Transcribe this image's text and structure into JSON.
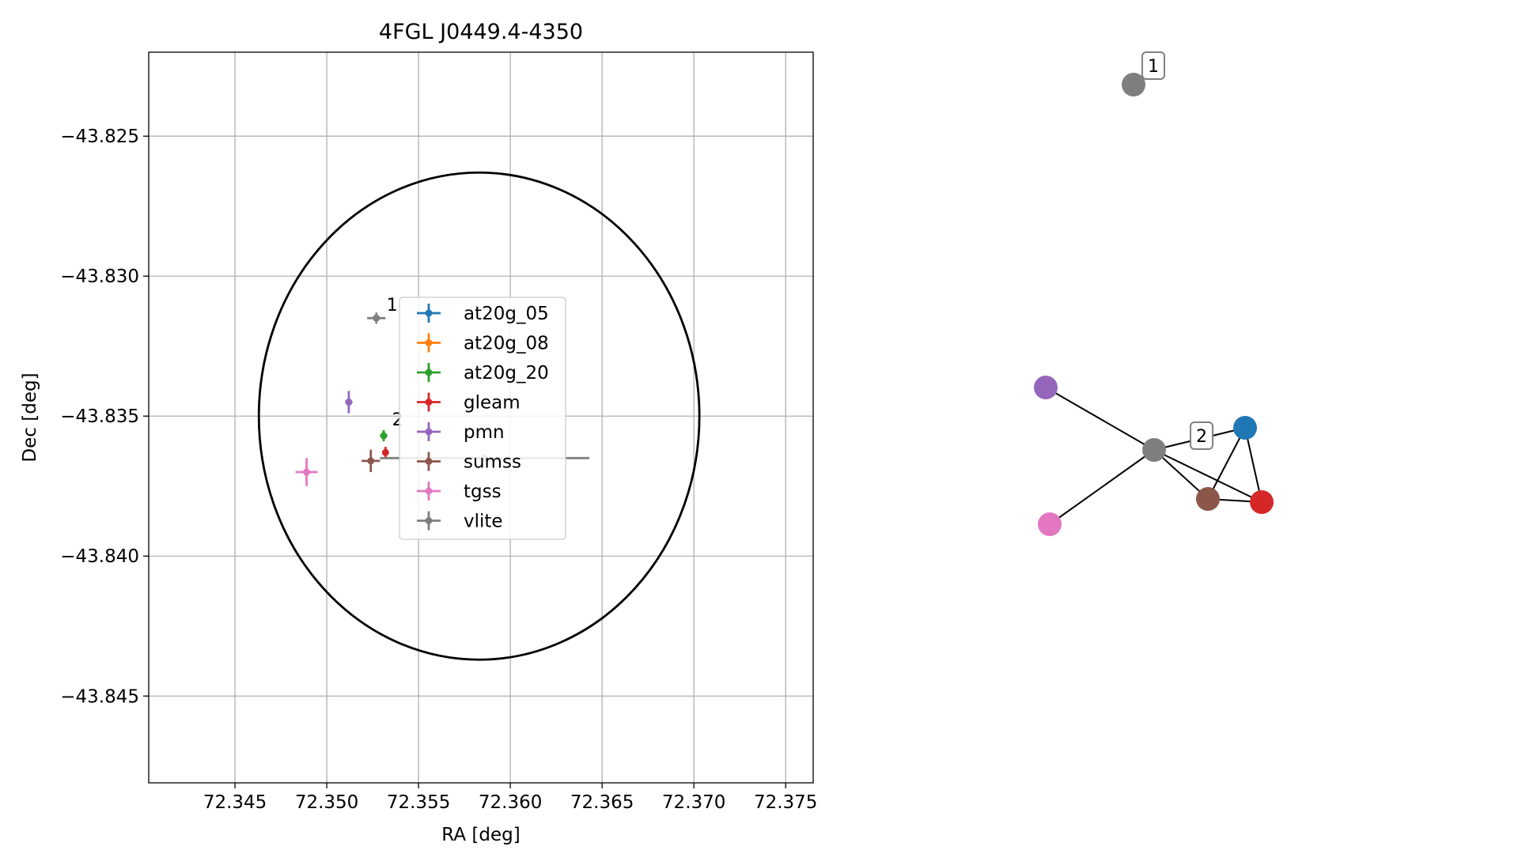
{
  "chart_data": [
    {
      "type": "scatter",
      "title": "4FGL J0449.4-4350",
      "xlabel": "RA [deg]",
      "ylabel": "Dec [deg]",
      "xlim": [
        72.3403,
        72.3765
      ],
      "ylim": [
        -43.8481,
        -43.822
      ],
      "xticks": [
        72.345,
        72.35,
        72.355,
        72.36,
        72.365,
        72.37,
        72.375
      ],
      "xtick_labels": [
        "72.345",
        "72.350",
        "72.355",
        "72.360",
        "72.365",
        "72.370",
        "72.375"
      ],
      "yticks": [
        -43.825,
        -43.83,
        -43.835,
        -43.84,
        -43.845
      ],
      "ytick_labels": [
        "−43.825",
        "−43.830",
        "−43.835",
        "−43.840",
        "−43.845"
      ],
      "grid": true,
      "legend_position": "center",
      "ellipse": {
        "center": [
          72.3583,
          -43.835
        ],
        "ra_semi_axis": 0.012,
        "dec_semi_axis": 0.0087,
        "color": "#000000"
      },
      "series": [
        {
          "name": "at20g_05",
          "color": "#1f77b4",
          "points": []
        },
        {
          "name": "at20g_08",
          "color": "#ff7f0e",
          "points": []
        },
        {
          "name": "at20g_20",
          "color": "#2ca02c",
          "points": [
            {
              "x": 72.3531,
              "y": -43.8357,
              "xerr": 0.0002,
              "yerr": 0.0002
            }
          ]
        },
        {
          "name": "gleam",
          "color": "#d62728",
          "points": [
            {
              "x": 72.3532,
              "y": -43.8363,
              "xerr": 0.0001,
              "yerr": 0.0002
            }
          ]
        },
        {
          "name": "pmn",
          "color": "#9467bd",
          "points": [
            {
              "x": 72.3512,
              "y": -43.8345,
              "xerr": 0.0002,
              "yerr": 0.0004
            }
          ]
        },
        {
          "name": "sumss",
          "color": "#8c564b",
          "points": [
            {
              "x": 72.3524,
              "y": -43.8366,
              "xerr": 0.0005,
              "yerr": 0.0004
            }
          ]
        },
        {
          "name": "tgss",
          "color": "#e377c2",
          "points": [
            {
              "x": 72.3489,
              "y": -43.837,
              "xerr": 0.0006,
              "yerr": 0.0005
            }
          ]
        },
        {
          "name": "vlite",
          "color": "#7f7f7f",
          "points": [
            {
              "x": 72.3527,
              "y": -43.8315,
              "xerr": 0.0005,
              "yerr": 0.0002
            },
            {
              "x": 72.3586,
              "y": -43.8365,
              "xerr": 0.0057,
              "yerr": 0.0001
            }
          ]
        }
      ],
      "annotations": [
        {
          "text": "1",
          "x": 72.353,
          "y": -43.8314
        },
        {
          "text": "2",
          "x": 72.3533,
          "y": -43.8355
        }
      ]
    },
    {
      "type": "network",
      "nodes": [
        {
          "id": "n1",
          "color": "#7f7f7f",
          "label": "1"
        },
        {
          "id": "n2",
          "color": "#7f7f7f",
          "label": "2"
        },
        {
          "id": "at20g_05",
          "color": "#1f77b4",
          "label": ""
        },
        {
          "id": "gleam",
          "color": "#d62728",
          "label": ""
        },
        {
          "id": "sumss",
          "color": "#8c564b",
          "label": ""
        },
        {
          "id": "pmn",
          "color": "#9467bd",
          "label": ""
        },
        {
          "id": "tgss",
          "color": "#e377c2",
          "label": ""
        }
      ],
      "edges": [
        [
          "n2",
          "pmn"
        ],
        [
          "n2",
          "tgss"
        ],
        [
          "n2",
          "at20g_05"
        ],
        [
          "n2",
          "sumss"
        ],
        [
          "n2",
          "gleam"
        ],
        [
          "at20g_05",
          "sumss"
        ],
        [
          "at20g_05",
          "gleam"
        ],
        [
          "sumss",
          "gleam"
        ]
      ]
    }
  ]
}
